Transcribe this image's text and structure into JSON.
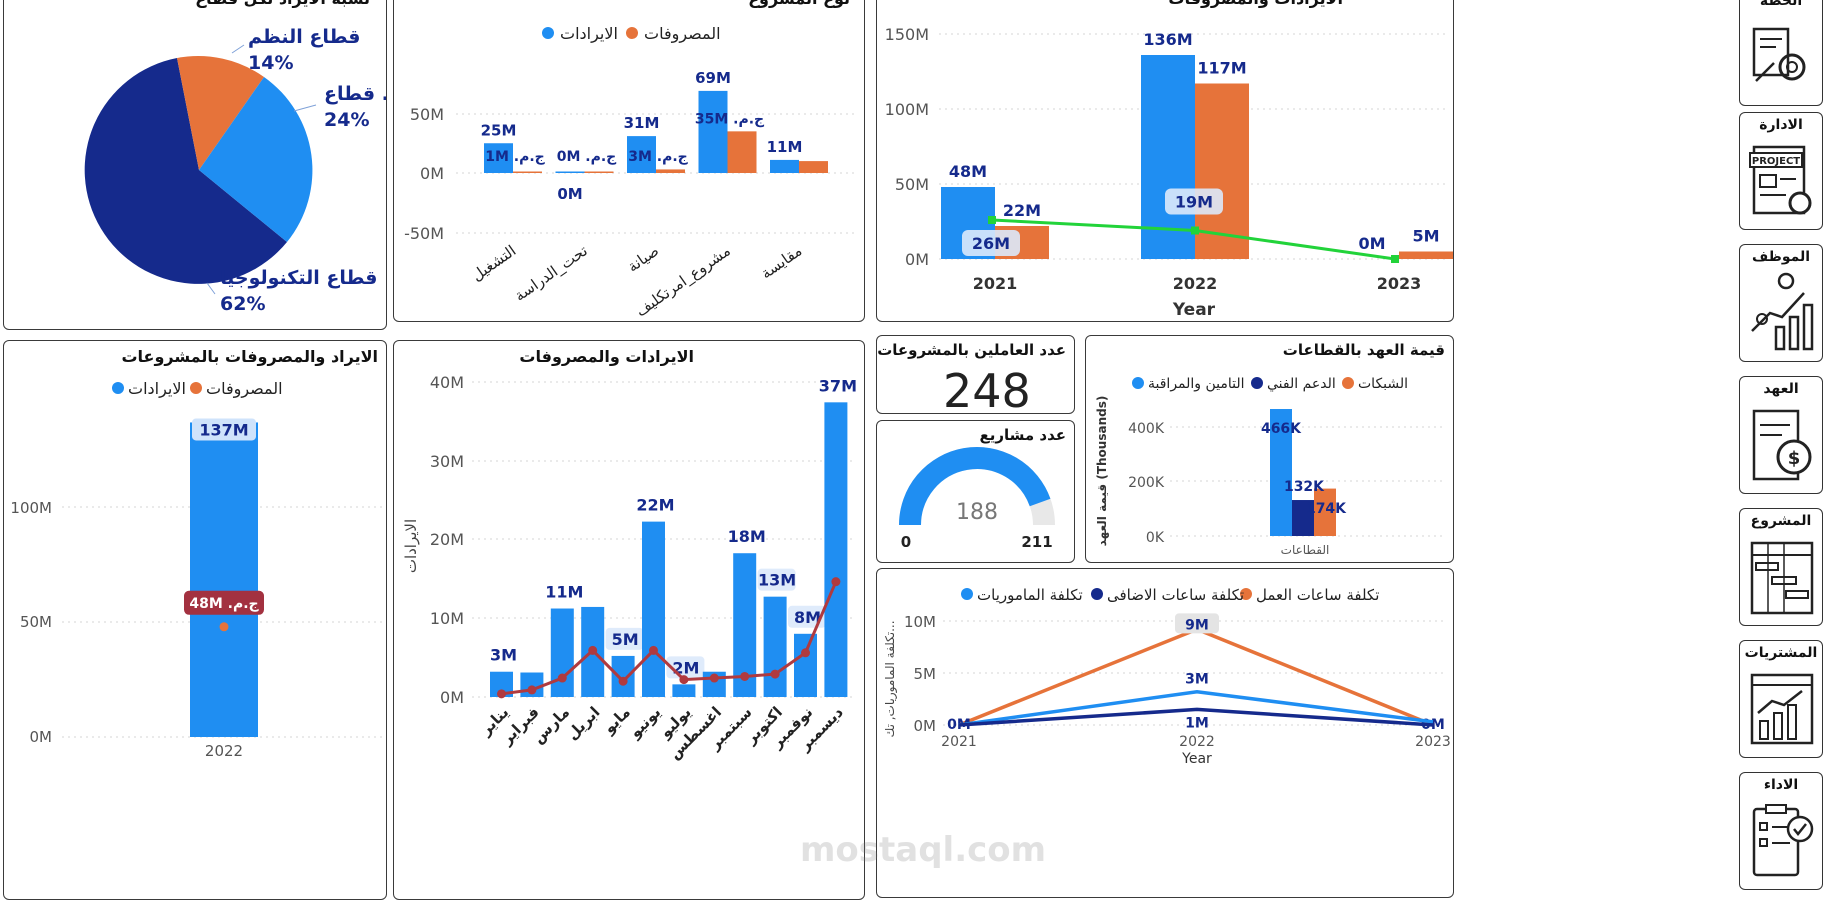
{
  "panels": {
    "sector_pie": {
      "title": "نسبة الايراد لكل قطاع",
      "chart_data": {
        "type": "pie",
        "slices": [
          {
            "label": "قطاع التكنولوجيا",
            "pct_label": "62%",
            "value": 62,
            "color": "#152a8c"
          },
          {
            "label": "قطاع النظم",
            "pct_label": "14%",
            "value": 14,
            "color": "#e6733a"
          },
          {
            "label": "قطاع ...",
            "pct_label": "24%",
            "value": 24,
            "color": "#1f8ef2"
          }
        ]
      }
    },
    "type_bar": {
      "title": "نوع المشروع",
      "legend": [
        "الايرادات",
        "المصروفات"
      ],
      "chart_data": {
        "type": "bar",
        "categories": [
          "التشغيل",
          "تحت_الدراسة",
          "صيانة",
          "مشروع_امرتكليف",
          "مقايسة"
        ],
        "series": [
          {
            "name": "الايرادات",
            "values": [
              25,
              0,
              31,
              69,
              11
            ],
            "color": "#1f8ef2"
          },
          {
            "name": "المصروفات",
            "values": [
              1,
              0,
              3,
              35,
              10
            ],
            "color": "#e6733a"
          }
        ],
        "data_labels": {
          "revenue": [
            "25M",
            "0M",
            "31M",
            "69M",
            "11M"
          ],
          "expense": [
            "ج.م. 1M",
            "ج.م. 0M",
            "ج.م. 3M",
            "ج.م. 35M",
            ""
          ]
        },
        "yticks": [
          "50M",
          "0M",
          "-50M"
        ],
        "ylim": [
          -50,
          69
        ]
      }
    },
    "year_bar": {
      "title": "الايرادات والمصروفات",
      "chart_data": {
        "type": "bar",
        "categories": [
          "2021",
          "2022",
          "2023"
        ],
        "xlabel": "Year",
        "series": [
          {
            "name": "الايرادات",
            "values": [
              48,
              136,
              0
            ],
            "labels": [
              "48M",
              "136M",
              "0M"
            ],
            "color": "#1f8ef2"
          },
          {
            "name": "المصروفات",
            "values": [
              22,
              117,
              5
            ],
            "labels": [
              "22M",
              "117M",
              "5M"
            ],
            "color": "#e6733a"
          },
          {
            "name": "line",
            "values": [
              26,
              19,
              0
            ],
            "labels": [
              "26M",
              "19M",
              ""
            ],
            "color": "#22d33a"
          }
        ],
        "yticks": [
          "150M",
          "100M",
          "50M",
          "0M"
        ],
        "ylim": [
          0,
          150
        ]
      }
    },
    "project_bar": {
      "title": "الايراد والمصروفات بالمشروعات",
      "legend": [
        "المصروفات",
        "الايرادات"
      ],
      "chart_data": {
        "type": "bar",
        "categories": [
          "2022"
        ],
        "series": [
          {
            "name": "الايرادات",
            "values": [
              137
            ],
            "labels": [
              "137M"
            ],
            "color": "#1f8ef2"
          },
          {
            "name": "المصروفات",
            "values": [
              48
            ],
            "labels": [
              "ج.م. 48M"
            ],
            "color": "#e6733a"
          }
        ],
        "yticks": [
          "100M",
          "50M",
          "0M"
        ],
        "ylim": [
          0,
          137
        ]
      }
    },
    "monthly_bar": {
      "title": "الايرادات والمصروفات",
      "ylabel": "الايرادات",
      "chart_data": {
        "type": "bar",
        "categories": [
          "يناير",
          "فبراير",
          "مارس",
          "ابريل",
          "مايو",
          "يونيو",
          "يوليو",
          "اغسطس",
          "سبتمبر",
          "اكتوبر",
          "نوفمبر",
          "ديسمبر"
        ],
        "bars": [
          3.2,
          3.1,
          11.2,
          11.4,
          5.2,
          22.2,
          1.6,
          3.2,
          18.2,
          12.7,
          8.0,
          37.3
        ],
        "bar_labels": [
          "3M",
          "",
          "11M",
          "",
          "5M",
          "22M",
          "2M",
          "",
          "18M",
          "13M",
          "8M",
          "37M"
        ],
        "line": [
          0.4,
          0.9,
          2.4,
          5.9,
          2.0,
          5.9,
          2.2,
          2.4,
          2.6,
          2.9,
          5.6,
          14.6
        ],
        "yticks": [
          "40M",
          "30M",
          "20M",
          "10M",
          "0M"
        ],
        "ylim": [
          0,
          40
        ]
      }
    },
    "workers_kpi": {
      "title": "عدد العاملين بالمشروعات",
      "value": "248"
    },
    "projects_gauge": {
      "title": "عدد مشاريع",
      "value": 188,
      "min": "0",
      "max": "211",
      "value_label": "188",
      "max_value": 211
    },
    "custody_bar": {
      "title": "قيمة العهد بالقطاعات",
      "legend": [
        "التامين والمراقبة",
        "الدعم الفني",
        "الشبكات"
      ],
      "ylabel": "قيمة العهد (Thousands)",
      "xlabel": "القطاعات",
      "chart_data": {
        "type": "bar",
        "series": [
          {
            "name": "التامين والمراقبة",
            "values": [
              466
            ],
            "labels": [
              "466K"
            ],
            "color": "#1f8ef2"
          },
          {
            "name": "الدعم الفني",
            "values": [
              132
            ],
            "labels": [
              "132K"
            ],
            "color": "#152a8c"
          },
          {
            "name": "الشبكات",
            "values": [
              174
            ],
            "labels": [
              "174K"
            ],
            "color": "#e6733a"
          }
        ],
        "yticks": [
          "400K",
          "200K",
          "0K"
        ],
        "ylim": [
          0,
          466
        ]
      }
    },
    "cost_line": {
      "title": "",
      "legend": [
        "تكلفة الماموريات",
        "تكلفة ساعات الاضافى",
        "تكلفة ساعات العمل"
      ],
      "ylabel": "تكلفة الماموريات, تك...",
      "xlabel": "Year",
      "chart_data": {
        "type": "line",
        "x": [
          "2021",
          "2022",
          "2023"
        ],
        "series": [
          {
            "name": "تكلفة ساعات العمل",
            "values": [
              0,
              9.2,
              0
            ],
            "labels": [
              "0M",
              "9M",
              "0M"
            ],
            "color": "#e6733a"
          },
          {
            "name": "تكلفة الماموريات",
            "values": [
              0,
              3.2,
              0.3
            ],
            "labels": [
              "",
              "3M",
              ""
            ],
            "color": "#1f8ef2"
          },
          {
            "name": "تكلفة ساعات الاضافى",
            "values": [
              0,
              1.5,
              0
            ],
            "labels": [
              "",
              "1M",
              ""
            ],
            "color": "#152a8c"
          }
        ],
        "yticks": [
          "10M",
          "5M",
          "0M"
        ],
        "ylim": [
          0,
          10
        ]
      }
    }
  },
  "nav": {
    "items": [
      {
        "label": "الخطة",
        "icon": "plan-gear-icon"
      },
      {
        "label": "الادارة",
        "icon": "project-document-icon"
      },
      {
        "label": "الموظف",
        "icon": "employee-growth-icon"
      },
      {
        "label": "العهد",
        "icon": "custody-document-icon"
      },
      {
        "label": "المشروع",
        "icon": "project-gantt-icon"
      },
      {
        "label": "المشتريات",
        "icon": "purchases-chart-icon"
      },
      {
        "label": "الاداء",
        "icon": "performance-checklist-icon"
      }
    ]
  },
  "watermark": "mostaql.com"
}
